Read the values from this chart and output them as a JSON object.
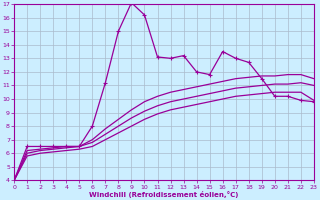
{
  "title": "",
  "xlabel": "Windchill (Refroidissement éolien,°C)",
  "bg_color": "#cceeff",
  "line_color": "#990099",
  "grid_color": "#aabbcc",
  "font_color": "#990099",
  "xlim": [
    0,
    23
  ],
  "ylim": [
    4,
    17
  ],
  "xticks": [
    0,
    1,
    2,
    3,
    4,
    5,
    6,
    7,
    8,
    9,
    10,
    11,
    12,
    13,
    14,
    15,
    16,
    17,
    18,
    19,
    20,
    21,
    22,
    23
  ],
  "yticks": [
    4,
    5,
    6,
    7,
    8,
    9,
    10,
    11,
    12,
    13,
    14,
    15,
    16,
    17
  ],
  "series": [
    [
      4.0,
      6.5,
      6.5,
      6.5,
      6.5,
      6.5,
      8.0,
      11.2,
      15.0,
      17.1,
      16.2,
      13.1,
      13.0,
      13.2,
      12.0,
      11.8,
      13.5,
      13.0,
      12.7,
      11.5,
      10.2,
      10.2,
      9.9,
      9.8
    ],
    [
      4.0,
      6.2,
      6.3,
      6.4,
      6.5,
      6.5,
      7.0,
      7.8,
      8.5,
      9.2,
      9.8,
      10.2,
      10.5,
      10.7,
      10.9,
      11.1,
      11.3,
      11.5,
      11.6,
      11.7,
      11.7,
      11.8,
      11.8,
      11.5
    ],
    [
      4.0,
      6.0,
      6.2,
      6.3,
      6.4,
      6.5,
      6.8,
      7.4,
      8.0,
      8.6,
      9.1,
      9.5,
      9.8,
      10.0,
      10.2,
      10.4,
      10.6,
      10.8,
      10.9,
      11.0,
      11.1,
      11.1,
      11.2,
      11.0
    ],
    [
      4.0,
      5.8,
      6.0,
      6.1,
      6.2,
      6.3,
      6.5,
      7.0,
      7.5,
      8.0,
      8.5,
      8.9,
      9.2,
      9.4,
      9.6,
      9.8,
      10.0,
      10.2,
      10.3,
      10.4,
      10.5,
      10.5,
      10.5,
      9.9
    ]
  ],
  "marker": "+"
}
